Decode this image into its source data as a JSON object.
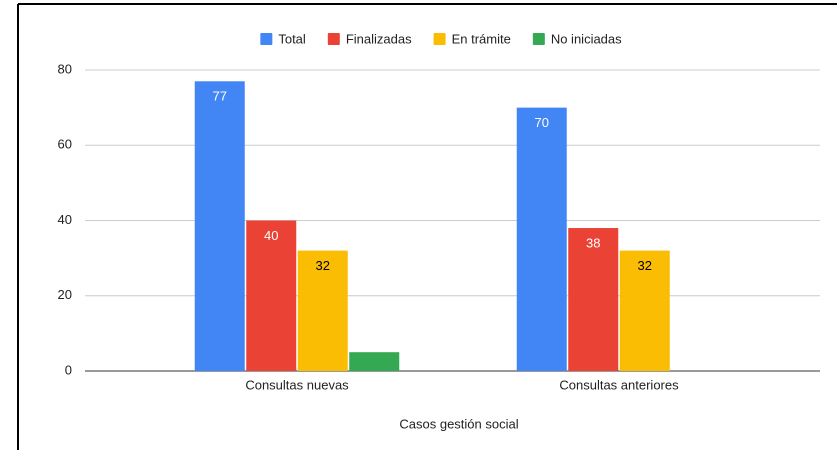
{
  "chart_data": {
    "type": "bar",
    "x_label": "Casos gestión social",
    "categories": [
      "Consultas nuevas",
      "Consultas anteriores"
    ],
    "series": [
      {
        "name": "Total",
        "color": "#4285f4",
        "label_color": "#ffffff",
        "show_labels": true,
        "values": [
          77,
          70
        ]
      },
      {
        "name": "Finalizadas",
        "color": "#ea4335",
        "label_color": "#ffffff",
        "show_labels": true,
        "values": [
          40,
          38
        ]
      },
      {
        "name": "En trámite",
        "color": "#fbbc04",
        "label_color": "#000000",
        "show_labels": true,
        "values": [
          32,
          32
        ]
      },
      {
        "name": "No iniciadas",
        "color": "#34a853",
        "label_color": "#000000",
        "show_labels": false,
        "values": [
          5,
          0
        ]
      }
    ],
    "ylim": [
      0,
      80
    ],
    "yticks": [
      0,
      20,
      40,
      60,
      80
    ],
    "grid": true,
    "legend": "top"
  }
}
